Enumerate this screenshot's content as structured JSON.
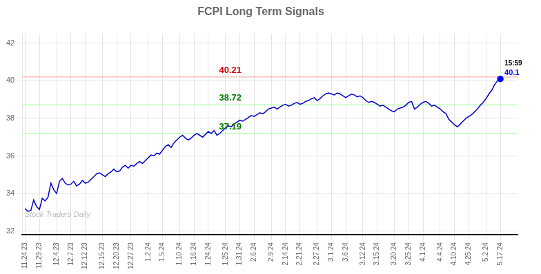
{
  "chart_data": {
    "type": "line",
    "title": "FCPI Long Term Signals",
    "color": "#0000cc",
    "grid": true,
    "ylim": [
      31.8,
      42.5
    ],
    "yticks": [
      32,
      34,
      36,
      38,
      40,
      42
    ],
    "categories": [
      "11.24.23",
      null,
      null,
      null,
      null,
      "11.29.23",
      null,
      null,
      null,
      null,
      null,
      "12.4.23",
      null,
      null,
      null,
      null,
      "12.7.23",
      null,
      null,
      null,
      null,
      "12.12.23",
      null,
      null,
      null,
      null,
      null,
      "12.15.23",
      null,
      null,
      null,
      null,
      "12.20.23",
      null,
      null,
      null,
      null,
      "12.27.23",
      null,
      null,
      null,
      null,
      null,
      "1.2.24",
      null,
      null,
      null,
      null,
      "1.5.24",
      null,
      null,
      null,
      null,
      null,
      "1.10.24",
      null,
      null,
      null,
      null,
      "1.16.24",
      null,
      null,
      null,
      null,
      "1.24.24",
      null,
      null,
      null,
      null,
      null,
      "1.25.24",
      null,
      null,
      null,
      null,
      "1.31.24",
      null,
      null,
      null,
      null,
      "2.6.24",
      null,
      null,
      null,
      null,
      null,
      "2.9.24",
      null,
      null,
      null,
      null,
      "2.14.24",
      null,
      null,
      null,
      null,
      "2.21.24",
      null,
      null,
      null,
      null,
      null,
      "2.27.24",
      null,
      null,
      null,
      null,
      "3.1.24",
      null,
      null,
      null,
      null,
      "3.6.24",
      null,
      null,
      null,
      null,
      null,
      "3.12.24",
      null,
      null,
      null,
      null,
      "3.15.24",
      null,
      null,
      null,
      null,
      null,
      "3.20.24",
      null,
      null,
      null,
      null,
      "3.25.24",
      null,
      null,
      null,
      null,
      "4.1.24",
      null,
      null,
      null,
      null,
      null,
      "4.4.24",
      null,
      null,
      null,
      null,
      "4.10.24",
      null,
      null,
      null,
      null,
      "4.25.24",
      null,
      null,
      null,
      null,
      null,
      "5.2.24",
      null,
      null,
      null,
      null,
      "5.17.24"
    ],
    "values": [
      33.2,
      33.05,
      33.1,
      33.65,
      33.3,
      33.15,
      33.75,
      33.6,
      33.8,
      34.55,
      34.2,
      34.0,
      34.65,
      34.8,
      34.55,
      34.45,
      34.5,
      34.65,
      34.4,
      34.5,
      34.7,
      34.55,
      34.6,
      34.75,
      34.9,
      35.05,
      35.1,
      35.0,
      34.9,
      35.05,
      35.15,
      35.3,
      35.15,
      35.2,
      35.4,
      35.5,
      35.35,
      35.5,
      35.45,
      35.6,
      35.7,
      35.6,
      35.75,
      35.9,
      36.05,
      36.0,
      36.15,
      36.1,
      36.3,
      36.5,
      36.6,
      36.45,
      36.7,
      36.85,
      37.0,
      37.1,
      36.95,
      36.85,
      36.95,
      37.1,
      37.2,
      37.1,
      37.0,
      37.15,
      37.3,
      37.2,
      37.35,
      37.1,
      37.2,
      37.35,
      37.5,
      37.6,
      37.55,
      37.7,
      37.8,
      37.9,
      37.85,
      37.95,
      38.05,
      38.15,
      38.1,
      38.2,
      38.3,
      38.25,
      38.35,
      38.5,
      38.55,
      38.6,
      38.5,
      38.6,
      38.7,
      38.75,
      38.65,
      38.7,
      38.8,
      38.85,
      38.75,
      38.8,
      38.9,
      38.95,
      39.05,
      39.1,
      38.95,
      39.05,
      39.2,
      39.3,
      39.35,
      39.3,
      39.25,
      39.35,
      39.3,
      39.2,
      39.1,
      39.2,
      39.3,
      39.25,
      39.15,
      39.2,
      39.1,
      38.95,
      38.85,
      38.9,
      38.85,
      38.75,
      38.65,
      38.7,
      38.6,
      38.5,
      38.4,
      38.35,
      38.5,
      38.55,
      38.6,
      38.7,
      38.85,
      38.9,
      38.5,
      38.6,
      38.75,
      38.85,
      38.9,
      38.8,
      38.65,
      38.7,
      38.6,
      38.5,
      38.35,
      38.25,
      37.95,
      37.8,
      37.65,
      37.55,
      37.7,
      37.85,
      38.0,
      38.1,
      38.2,
      38.35,
      38.5,
      38.7,
      38.85,
      39.05,
      39.3,
      39.5,
      39.8,
      40.0,
      40.1
    ],
    "reference_lines": [
      {
        "value": 40.21,
        "label": "40.21",
        "color": "#ffbbbb",
        "label_color": "#cc0000"
      },
      {
        "value": 38.72,
        "label": "38.72",
        "color": "#bbffbb",
        "label_color": "#007700"
      },
      {
        "value": 37.19,
        "label": "37.19",
        "color": "#bbffbb",
        "label_color": "#007700"
      }
    ],
    "end_marker": {
      "color": "#0000ff",
      "time_label": "15:59",
      "value_label": "40.1"
    },
    "watermark": {
      "text": "Stock Traders Daily",
      "color": "#bbbbbb"
    }
  }
}
